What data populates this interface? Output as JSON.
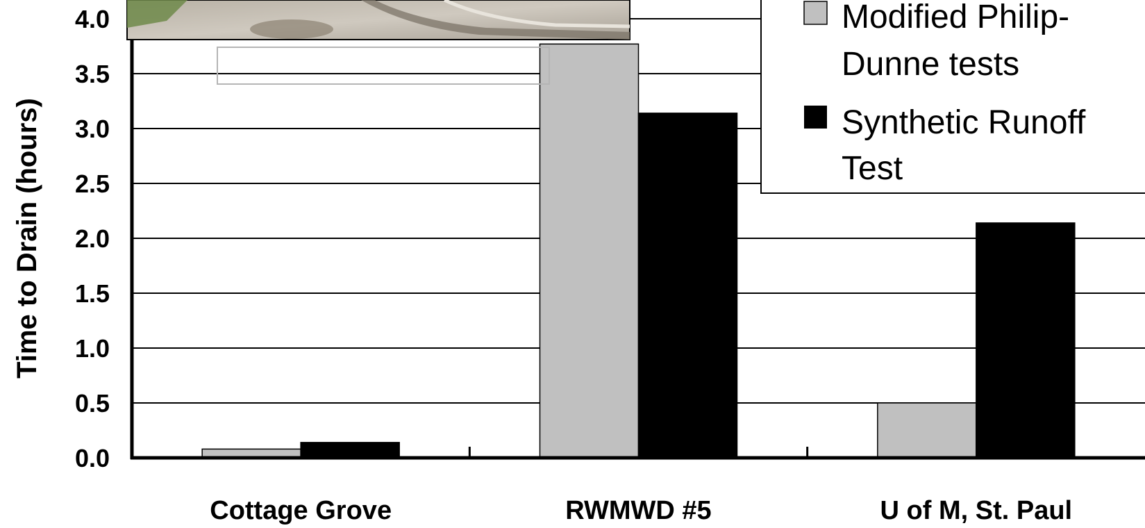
{
  "chart_data": {
    "type": "bar",
    "categories": [
      "Cottage Grove",
      "RWMWD #5",
      "U of M, St. Paul"
    ],
    "series": [
      {
        "name": "Modified Philip-Dunne tests",
        "legend_lines": [
          "Modified Philip-",
          "Dunne tests"
        ],
        "color": "#c0c0c0",
        "values": [
          0.08,
          3.77,
          0.5
        ]
      },
      {
        "name": "Synthetic Runoff Test",
        "legend_lines": [
          "Synthetic Runoff",
          "Test"
        ],
        "color": "#000000",
        "values": [
          0.14,
          3.14,
          2.14
        ]
      }
    ],
    "ylabel": "Time to Drain (hours)",
    "ylim": [
      0,
      4.0
    ],
    "yticks": [
      "0.0",
      "0.5",
      "1.0",
      "1.5",
      "2.0",
      "2.5",
      "3.0",
      "3.5",
      "4.0"
    ],
    "grid": true,
    "legend_position": "top-right"
  },
  "inset_photo": {
    "icon": "photo-of-pavement-and-curb"
  }
}
